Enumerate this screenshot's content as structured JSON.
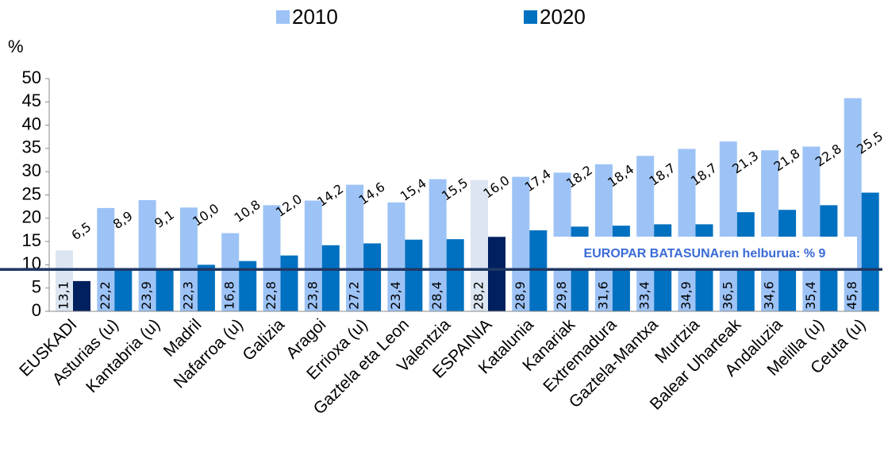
{
  "chart_data": {
    "type": "bar",
    "y_label": "%",
    "categories": [
      "EUSKADI",
      "Asturias (u)",
      "Kantabria (u)",
      "Madril",
      "Nafarroa (u)",
      "Galizia",
      "Aragoi",
      "Errioxa (u)",
      "Gaztela eta Leon",
      "Valentzia",
      "ESPAINIA",
      "Katalunia",
      "Kanariak",
      "Extremadura",
      "Gaztela-Mantxa",
      "Murtzia",
      "Balear Uharteak",
      "Andaluzia",
      "Melilla (u)",
      "Ceuta (u)"
    ],
    "series": [
      {
        "name": "2010",
        "color": "#9dc3f6",
        "colors": [
          "#dce6f2",
          "#9dc3f6",
          "#9dc3f6",
          "#9dc3f6",
          "#9dc3f6",
          "#9dc3f6",
          "#9dc3f6",
          "#9dc3f6",
          "#9dc3f6",
          "#9dc3f6",
          "#dce6f2",
          "#9dc3f6",
          "#9dc3f6",
          "#9dc3f6",
          "#9dc3f6",
          "#9dc3f6",
          "#9dc3f6",
          "#9dc3f6",
          "#9dc3f6",
          "#9dc3f6"
        ],
        "values": [
          13.1,
          22.2,
          23.9,
          22.3,
          16.8,
          22.8,
          23.8,
          27.2,
          23.4,
          28.4,
          28.2,
          28.9,
          29.8,
          31.6,
          33.4,
          34.9,
          36.5,
          34.6,
          35.4,
          45.8
        ],
        "value_labels": [
          "13,1",
          "22,2",
          "23,9",
          "22,3",
          "16,8",
          "22,8",
          "23,8",
          "27,2",
          "23,4",
          "28,4",
          "28,2",
          "28,9",
          "29,8",
          "31,6",
          "33,4",
          "34,9",
          "36,5",
          "34,6",
          "35,4",
          "45,8"
        ]
      },
      {
        "name": "2020",
        "color": "#0070c0",
        "colors": [
          "#002060",
          "#0070c0",
          "#0070c0",
          "#0070c0",
          "#0070c0",
          "#0070c0",
          "#0070c0",
          "#0070c0",
          "#0070c0",
          "#0070c0",
          "#002060",
          "#0070c0",
          "#0070c0",
          "#0070c0",
          "#0070c0",
          "#0070c0",
          "#0070c0",
          "#0070c0",
          "#0070c0",
          "#0070c0"
        ],
        "values": [
          6.5,
          8.9,
          9.1,
          10.0,
          10.8,
          12.0,
          14.2,
          14.6,
          15.4,
          15.5,
          16.0,
          17.4,
          18.2,
          18.4,
          18.7,
          18.7,
          21.3,
          21.8,
          22.8,
          25.5
        ],
        "value_labels": [
          "6,5",
          "8,9",
          "9,1",
          "10,0",
          "10,8",
          "12,0",
          "14,2",
          "14,6",
          "15,4",
          "15,5",
          "16,0",
          "17,4",
          "18,2",
          "18,4",
          "18,7",
          "18,7",
          "21,3",
          "21,8",
          "22,8",
          "25,5"
        ]
      }
    ],
    "target": {
      "value": 9,
      "label": "EUROPAR BATASUNAren  helburua: % 9",
      "color": "#1f3864"
    },
    "ylim": [
      0,
      50
    ],
    "yticks": [
      0,
      5,
      10,
      15,
      20,
      25,
      30,
      35,
      40,
      45,
      50
    ],
    "legend": "top",
    "grid": false
  }
}
